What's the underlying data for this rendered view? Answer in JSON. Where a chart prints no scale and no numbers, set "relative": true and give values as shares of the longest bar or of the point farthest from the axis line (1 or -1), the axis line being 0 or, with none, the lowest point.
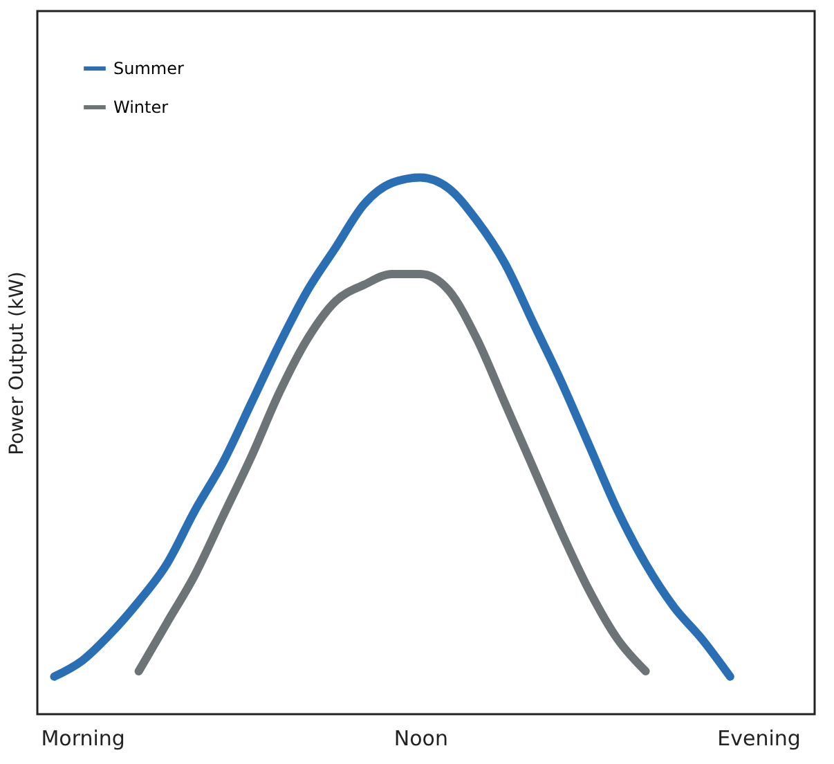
{
  "chart_data": {
    "type": "line",
    "relative": true,
    "ylabel": "Power Output (kW)",
    "categories": [
      null,
      "Morning",
      null,
      null,
      null,
      null,
      null,
      null,
      null,
      null,
      null,
      null,
      null,
      "Noon",
      null,
      null,
      null,
      null,
      null,
      null,
      null,
      null,
      null,
      null,
      null,
      "Evening"
    ],
    "tick_labels": "x",
    "grid": false,
    "legend": "top left",
    "marker": "none",
    "line_style": "solid",
    "series": [
      {
        "name": "Summer",
        "color": "#2a6eb3",
        "values": [
          0.07,
          0.1,
          0.15,
          0.21,
          0.28,
          0.38,
          0.47,
          0.58,
          0.69,
          0.79,
          0.87,
          0.95,
          0.99,
          1.0,
          0.98,
          0.92,
          0.84,
          0.73,
          0.62,
          0.5,
          0.38,
          0.28,
          0.2,
          0.14,
          0.07,
          null
        ]
      },
      {
        "name": "Winter",
        "color": "#6d7477",
        "values": [
          null,
          null,
          null,
          0.08,
          0.17,
          0.26,
          0.37,
          0.48,
          0.6,
          0.7,
          0.77,
          0.8,
          0.82,
          0.82,
          0.79,
          0.7,
          0.58,
          0.46,
          0.34,
          0.23,
          0.14,
          0.08,
          null,
          null,
          null,
          null
        ]
      }
    ]
  }
}
